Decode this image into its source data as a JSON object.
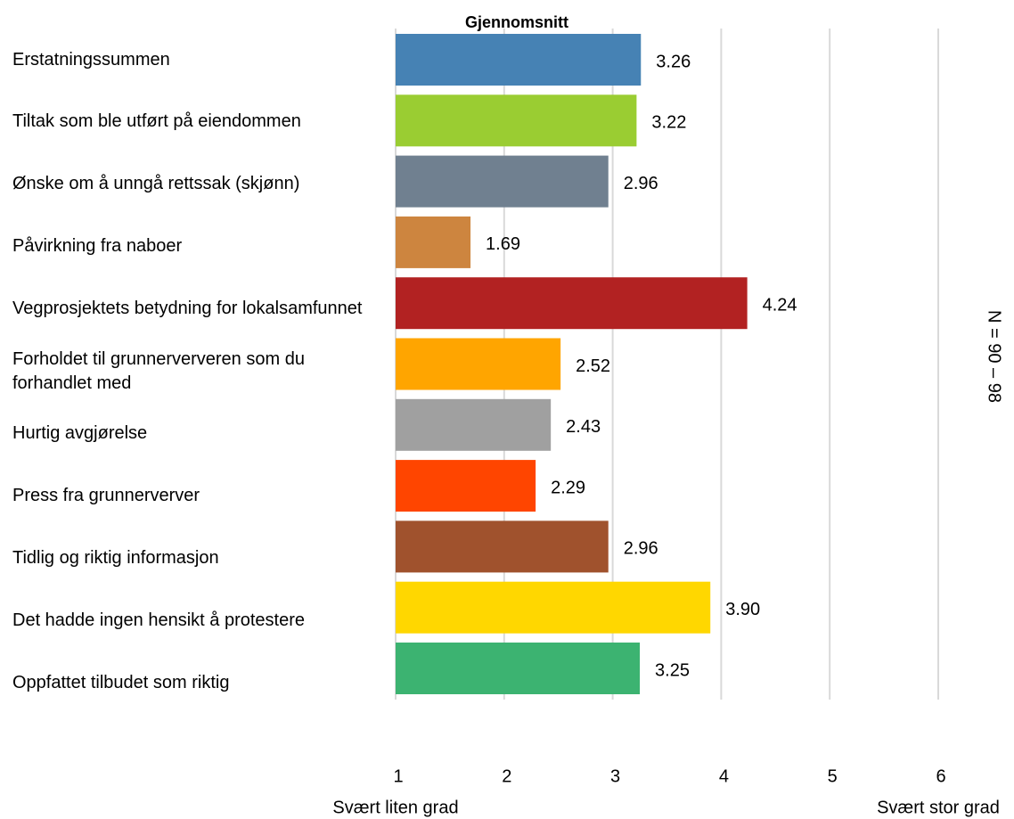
{
  "chart_data": {
    "type": "bar",
    "orientation": "horizontal",
    "title": "Gjennomsnitt",
    "categories": [
      "Erstatningssummen",
      "Tiltak som ble utført på eiendommen",
      "Ønske om å unngå rettssak (skjønn)",
      "Påvirkning fra naboer",
      "Vegprosjektets betydning for lokalsamfunnet",
      "Forholdet til grunnerververen som du forhandlet med",
      "Hurtig avgjørelse",
      "Press fra grunnerverver",
      "Tidlig og riktig informasjon",
      "Det hadde ingen hensikt å protestere",
      "Oppfattet tilbudet som riktig"
    ],
    "values": [
      3.26,
      3.22,
      2.96,
      1.69,
      4.24,
      2.52,
      2.43,
      2.29,
      2.96,
      3.9,
      3.25
    ],
    "value_labels": [
      "3.26",
      "3.22",
      "2.96",
      "1.69",
      "4.24",
      "2.52",
      "2.43",
      "2.29",
      "2.96",
      "3.90",
      "3.25"
    ],
    "colors": [
      "#4682b4",
      "#9acd32",
      "#708090",
      "#cd853f",
      "#b22222",
      "#ffa500",
      "#a0a0a0",
      "#ff4500",
      "#a0522d",
      "#ffd700",
      "#3cb371"
    ],
    "xlim": [
      1,
      6
    ],
    "xticks": [
      1,
      2,
      3,
      4,
      5,
      6
    ],
    "x_min_label": "Svært liten grad",
    "x_max_label": "Svært stor grad",
    "annotation": "N = 90 – 98",
    "grid": true
  }
}
